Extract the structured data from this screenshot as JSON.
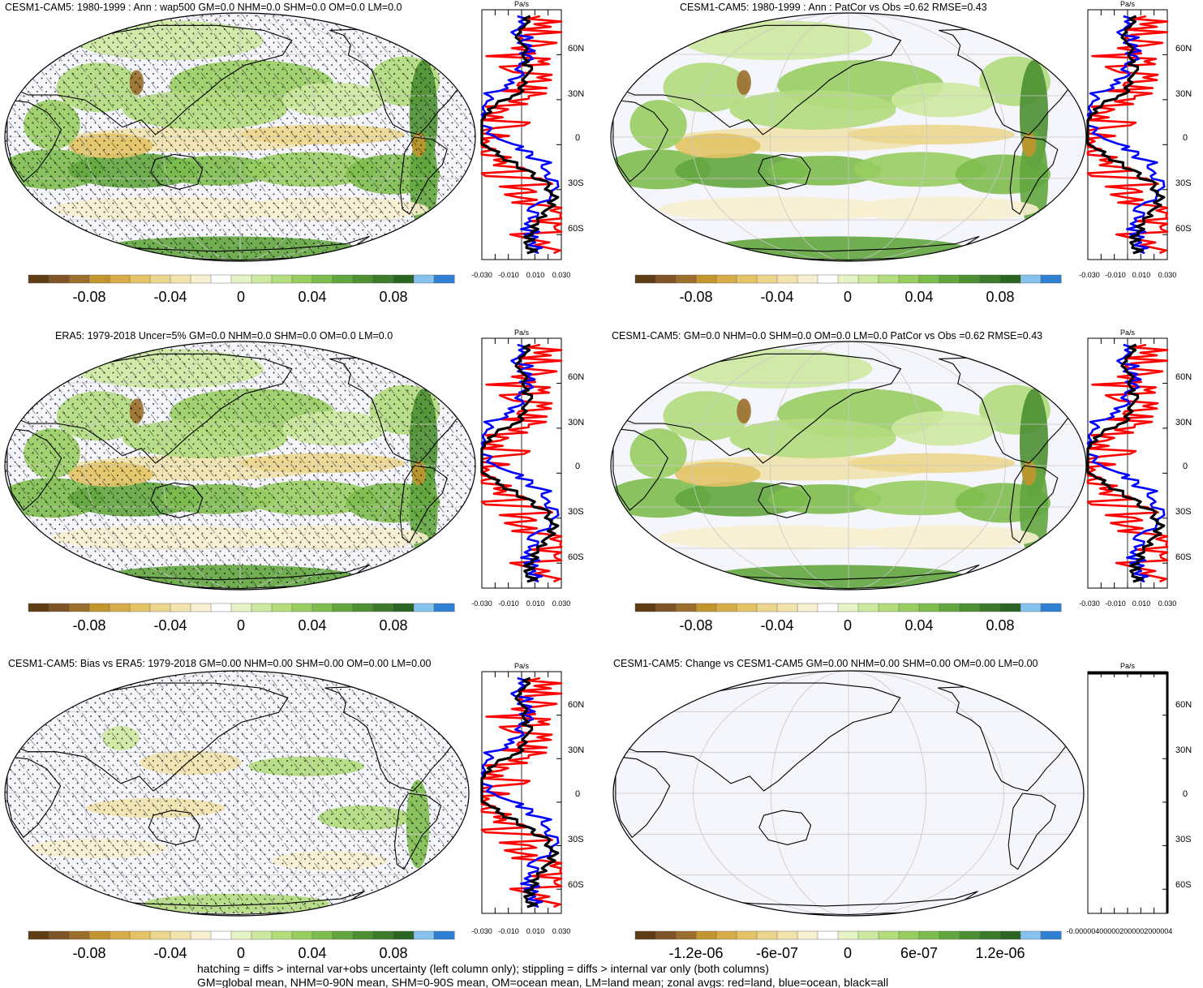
{
  "colors": {
    "ocean_base": "#f5f5fc",
    "outline": "#000000",
    "graticule": "#c8c8c8",
    "zonal_land": "#ff0000",
    "zonal_ocean": "#0000ff",
    "zonal_all": "#000000"
  },
  "colorbar_colors": [
    "#5e3c14",
    "#7e5426",
    "#9c6e2e",
    "#c2952e",
    "#d6ad48",
    "#e3c366",
    "#ecd68d",
    "#f2e3ad",
    "#f7efcf",
    "#ffffff",
    "#e6f3c4",
    "#cde9a0",
    "#b3dc7d",
    "#98cd60",
    "#7dbd4e",
    "#63a63f",
    "#4d8f33",
    "#3d7a2c",
    "#2c6424",
    "#86c2ee",
    "#2f7fd3"
  ],
  "panels": [
    {
      "title": "CESM1-CAM5: 1980-1999 : Ann : wap500 GM=0.0 NHM=0.0 SHM=0.0 OM=0.0 LM=0.0",
      "colorbar_labels": [
        "-0.08",
        "-0.04",
        "0",
        "0.04",
        "0.08"
      ],
      "zonal": {
        "unit": "Pa/s",
        "lat_ticks": [
          "60N",
          "30N",
          "0",
          "30S",
          "60S"
        ],
        "x_ticks": [
          "-0.030",
          "-0.010",
          "0.010",
          "0.030"
        ]
      },
      "hatching": true,
      "stippling": true,
      "field": "mean"
    },
    {
      "title": "CESM1-CAM5: 1980-1999 : Ann : PatCor vs Obs =0.62 RMSE=0.43",
      "colorbar_labels": [
        "-0.08",
        "-0.04",
        "0",
        "0.04",
        "0.08"
      ],
      "zonal": {
        "unit": "Pa/s",
        "lat_ticks": [
          "60N",
          "30N",
          "0",
          "30S",
          "60S"
        ],
        "x_ticks": [
          "-0.030",
          "-0.010",
          "0.010",
          "0.030"
        ]
      },
      "hatching": false,
      "stippling": false,
      "field": "mean"
    },
    {
      "title": "ERA5: 1979-2018 Uncer=5% GM=0.0 NHM=0.0 SHM=0.0 OM=0.0 LM=0.0",
      "colorbar_labels": [
        "-0.08",
        "-0.04",
        "0",
        "0.04",
        "0.08"
      ],
      "zonal": {
        "unit": "Pa/s",
        "lat_ticks": [
          "60N",
          "30N",
          "0",
          "30S",
          "60S"
        ],
        "x_ticks": [
          "-0.030",
          "-0.010",
          "0.010",
          "0.030"
        ]
      },
      "hatching": true,
      "stippling": true,
      "field": "mean"
    },
    {
      "title": "CESM1-CAM5: GM=0.0 NHM=0.0 SHM=0.0 OM=0.0 LM=0.0 PatCor vs Obs =0.62 RMSE=0.43",
      "colorbar_labels": [
        "-0.08",
        "-0.04",
        "0",
        "0.04",
        "0.08"
      ],
      "zonal": {
        "unit": "Pa/s",
        "lat_ticks": [
          "60N",
          "30N",
          "0",
          "30S",
          "60S"
        ],
        "x_ticks": [
          "-0.030",
          "-0.010",
          "0.010",
          "0.030"
        ]
      },
      "hatching": false,
      "stippling": false,
      "field": "mean"
    },
    {
      "title": "CESM1-CAM5: Bias vs ERA5: 1979-2018 GM=0.00 NHM=0.00 SHM=0.00 OM=0.00 LM=0.00",
      "colorbar_labels": [
        "-0.08",
        "-0.04",
        "0",
        "0.04",
        "0.08"
      ],
      "zonal": {
        "unit": "Pa/s",
        "lat_ticks": [
          "60N",
          "30N",
          "0",
          "30S",
          "60S"
        ],
        "x_ticks": [
          "-0.030",
          "-0.010",
          "0.010",
          "0.030"
        ]
      },
      "hatching": true,
      "stippling": true,
      "field": "bias"
    },
    {
      "title": "CESM1-CAM5: Change vs CESM1-CAM5 GM=0.00 NHM=0.00 SHM=0.00 OM=0.00 LM=0.00",
      "colorbar_labels": [
        "-1.2e-06",
        "-6e-07",
        "0",
        "6e-07",
        "1.2e-06"
      ],
      "zonal": {
        "unit": "Pa/s",
        "lat_ticks": [
          "60N",
          "30N",
          "0",
          "30S",
          "60S"
        ],
        "x_ticks": [
          "-0.000004",
          "-0.000002",
          "0.000002",
          "0.000004"
        ],
        "x_ticks_joined": "-0.000004000002000002000004"
      },
      "hatching": false,
      "stippling": false,
      "field": "none"
    }
  ],
  "footer": [
    "hatching = diffs > internal var+obs uncertainty (left column only); stippling = diffs > internal var only (both columns)",
    "GM=global mean, NHM=0-90N mean, SHM=0-90S mean, OM=ocean mean, LM=land mean; zonal avgs: red=land, blue=ocean, black=all"
  ]
}
